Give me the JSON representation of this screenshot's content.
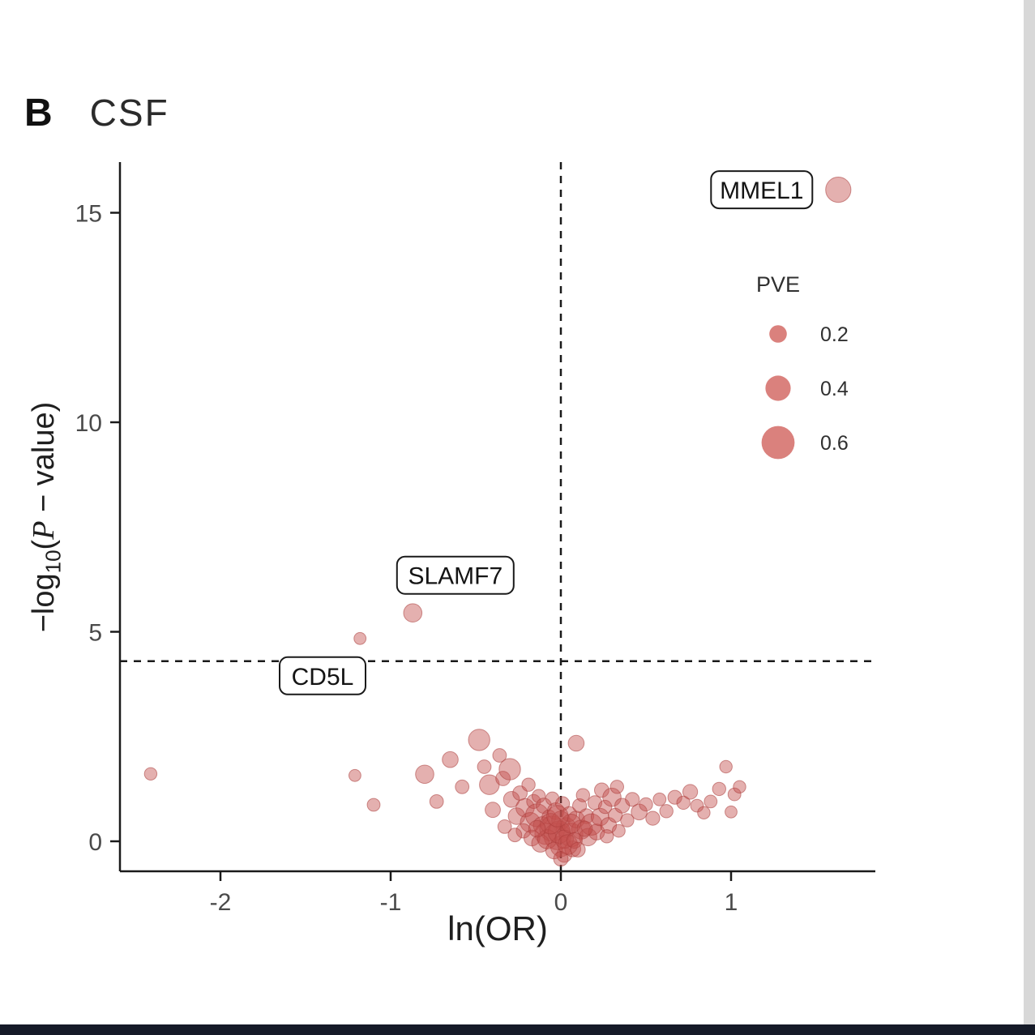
{
  "panel_label": "B",
  "title": "CSF",
  "axis": {
    "ylabel_prefix": "−log",
    "ylabel_sub": "10",
    "ylabel_open": "(",
    "ylabel_p": "P",
    "ylabel_rest": " − value)"
  },
  "frame": {
    "bottom_bar_color": "#151a28",
    "right_strip_color": "#d8d8d8"
  },
  "chart_data": {
    "type": "scatter",
    "title": "CSF",
    "xlabel": "ln(OR)",
    "ylabel": "−log10(P − value)",
    "xlim": [
      -2.6,
      1.85
    ],
    "ylim": [
      -0.9,
      16.3
    ],
    "x_ticks": [
      -2,
      -1,
      0,
      1
    ],
    "y_ticks": [
      0,
      5,
      10,
      15
    ],
    "vline": 0,
    "hline": 4.3,
    "grid": false,
    "threshold_color": "#1a1a1a",
    "point_fill": "#c4504d",
    "point_stroke": "#a93c3a",
    "point_opacity": 0.45,
    "legend_fill": "#d87a76",
    "legend": {
      "title": "PVE",
      "position": "inside-top-right",
      "entries": [
        0.2,
        0.4,
        0.6
      ],
      "x": 960,
      "title_y": 360,
      "first_y": 412,
      "row_gap": 67
    },
    "gene_labels": [
      {
        "text": "MMEL1",
        "box_cx": 1.18,
        "box_cy": 15.55,
        "point_x": 1.63,
        "point_y": 15.55
      },
      {
        "text": "SLAMF7",
        "box_cx": -0.62,
        "box_cy": 6.35,
        "point_x": -0.87,
        "point_y": 5.45
      },
      {
        "text": "CD5L",
        "box_cx": -1.4,
        "box_cy": 3.95,
        "point_x": -1.18,
        "point_y": 4.84
      }
    ],
    "points": [
      [
        1.63,
        15.55,
        0.4
      ],
      [
        -0.87,
        5.45,
        0.22
      ],
      [
        -1.18,
        4.84,
        0.06
      ],
      [
        -2.41,
        1.61,
        0.07
      ],
      [
        -1.21,
        1.57,
        0.06
      ],
      [
        -1.1,
        0.87,
        0.08
      ],
      [
        -0.8,
        1.6,
        0.22
      ],
      [
        -0.73,
        0.95,
        0.1
      ],
      [
        -0.65,
        1.95,
        0.16
      ],
      [
        -0.58,
        1.3,
        0.1
      ],
      [
        -0.48,
        2.42,
        0.3
      ],
      [
        -0.45,
        1.78,
        0.1
      ],
      [
        -0.42,
        1.35,
        0.26
      ],
      [
        -0.4,
        0.75,
        0.14
      ],
      [
        -0.36,
        2.05,
        0.1
      ],
      [
        -0.34,
        1.5,
        0.12
      ],
      [
        -0.3,
        1.72,
        0.3
      ],
      [
        -0.29,
        1.0,
        0.16
      ],
      [
        -0.26,
        0.6,
        0.18
      ],
      [
        -0.24,
        1.15,
        0.12
      ],
      [
        -0.21,
        0.8,
        0.22
      ],
      [
        -0.19,
        1.35,
        0.09
      ],
      [
        -0.18,
        0.45,
        0.26
      ],
      [
        -0.16,
        0.95,
        0.11
      ],
      [
        -0.14,
        0.62,
        0.34
      ],
      [
        -0.13,
        1.08,
        0.09
      ],
      [
        -0.11,
        0.38,
        0.2
      ],
      [
        -0.1,
        0.85,
        0.14
      ],
      [
        -0.09,
        0.18,
        0.3
      ],
      [
        -0.07,
        0.58,
        0.11
      ],
      [
        -0.05,
        1.02,
        0.09
      ],
      [
        -0.05,
        0.3,
        0.4
      ],
      [
        -0.03,
        0.72,
        0.18
      ],
      [
        -0.02,
        0.12,
        0.44
      ],
      [
        0.0,
        0.5,
        0.22
      ],
      [
        0.0,
        -0.12,
        0.28
      ],
      [
        0.01,
        0.9,
        0.11
      ],
      [
        0.02,
        -0.32,
        0.14
      ],
      [
        0.03,
        0.33,
        0.26
      ],
      [
        0.05,
        0.65,
        0.13
      ],
      [
        0.06,
        0.15,
        0.36
      ],
      [
        0.07,
        -0.18,
        0.16
      ],
      [
        0.09,
        2.34,
        0.16
      ],
      [
        0.09,
        0.52,
        0.18
      ],
      [
        0.11,
        0.85,
        0.11
      ],
      [
        0.12,
        0.28,
        0.24
      ],
      [
        0.13,
        1.1,
        0.09
      ],
      [
        0.15,
        0.6,
        0.13
      ],
      [
        0.16,
        0.1,
        0.2
      ],
      [
        0.18,
        0.4,
        0.3
      ],
      [
        0.2,
        0.92,
        0.11
      ],
      [
        0.21,
        0.22,
        0.16
      ],
      [
        0.23,
        0.58,
        0.2
      ],
      [
        0.24,
        1.22,
        0.12
      ],
      [
        0.26,
        0.82,
        0.09
      ],
      [
        0.28,
        0.38,
        0.16
      ],
      [
        0.3,
        1.05,
        0.22
      ],
      [
        0.32,
        0.62,
        0.11
      ],
      [
        0.33,
        1.3,
        0.09
      ],
      [
        0.36,
        0.85,
        0.13
      ],
      [
        0.39,
        0.5,
        0.09
      ],
      [
        0.42,
        1.0,
        0.11
      ],
      [
        0.46,
        0.7,
        0.16
      ],
      [
        0.5,
        0.88,
        0.09
      ],
      [
        0.54,
        0.55,
        0.11
      ],
      [
        0.58,
        1.0,
        0.08
      ],
      [
        0.62,
        0.72,
        0.09
      ],
      [
        0.67,
        1.05,
        0.11
      ],
      [
        0.72,
        0.92,
        0.09
      ],
      [
        0.76,
        1.18,
        0.13
      ],
      [
        0.8,
        0.85,
        0.08
      ],
      [
        0.84,
        0.68,
        0.07
      ],
      [
        0.88,
        0.95,
        0.08
      ],
      [
        0.93,
        1.25,
        0.09
      ],
      [
        0.97,
        1.78,
        0.07
      ],
      [
        1.0,
        0.7,
        0.06
      ],
      [
        1.02,
        1.12,
        0.08
      ],
      [
        1.05,
        1.3,
        0.07
      ],
      [
        -0.22,
        0.25,
        0.12
      ],
      [
        -0.17,
        0.08,
        0.16
      ],
      [
        -0.12,
        -0.05,
        0.2
      ],
      [
        -0.08,
        0.05,
        0.24
      ],
      [
        -0.04,
        -0.22,
        0.18
      ],
      [
        -0.01,
        0.22,
        0.32
      ],
      [
        0.02,
        0.05,
        0.22
      ],
      [
        0.04,
        -0.08,
        0.26
      ],
      [
        0.08,
        0.02,
        0.15
      ],
      [
        0.1,
        -0.2,
        0.13
      ],
      [
        -0.06,
        0.42,
        0.28
      ],
      [
        0.06,
        0.42,
        0.24
      ],
      [
        -0.14,
        0.3,
        0.18
      ],
      [
        0.14,
        0.3,
        0.14
      ],
      [
        -0.02,
        0.6,
        0.3
      ],
      [
        0.0,
        -0.42,
        0.12
      ],
      [
        -0.27,
        0.15,
        0.1
      ],
      [
        0.27,
        0.12,
        0.09
      ],
      [
        -0.33,
        0.35,
        0.1
      ],
      [
        0.34,
        0.25,
        0.08
      ]
    ]
  }
}
